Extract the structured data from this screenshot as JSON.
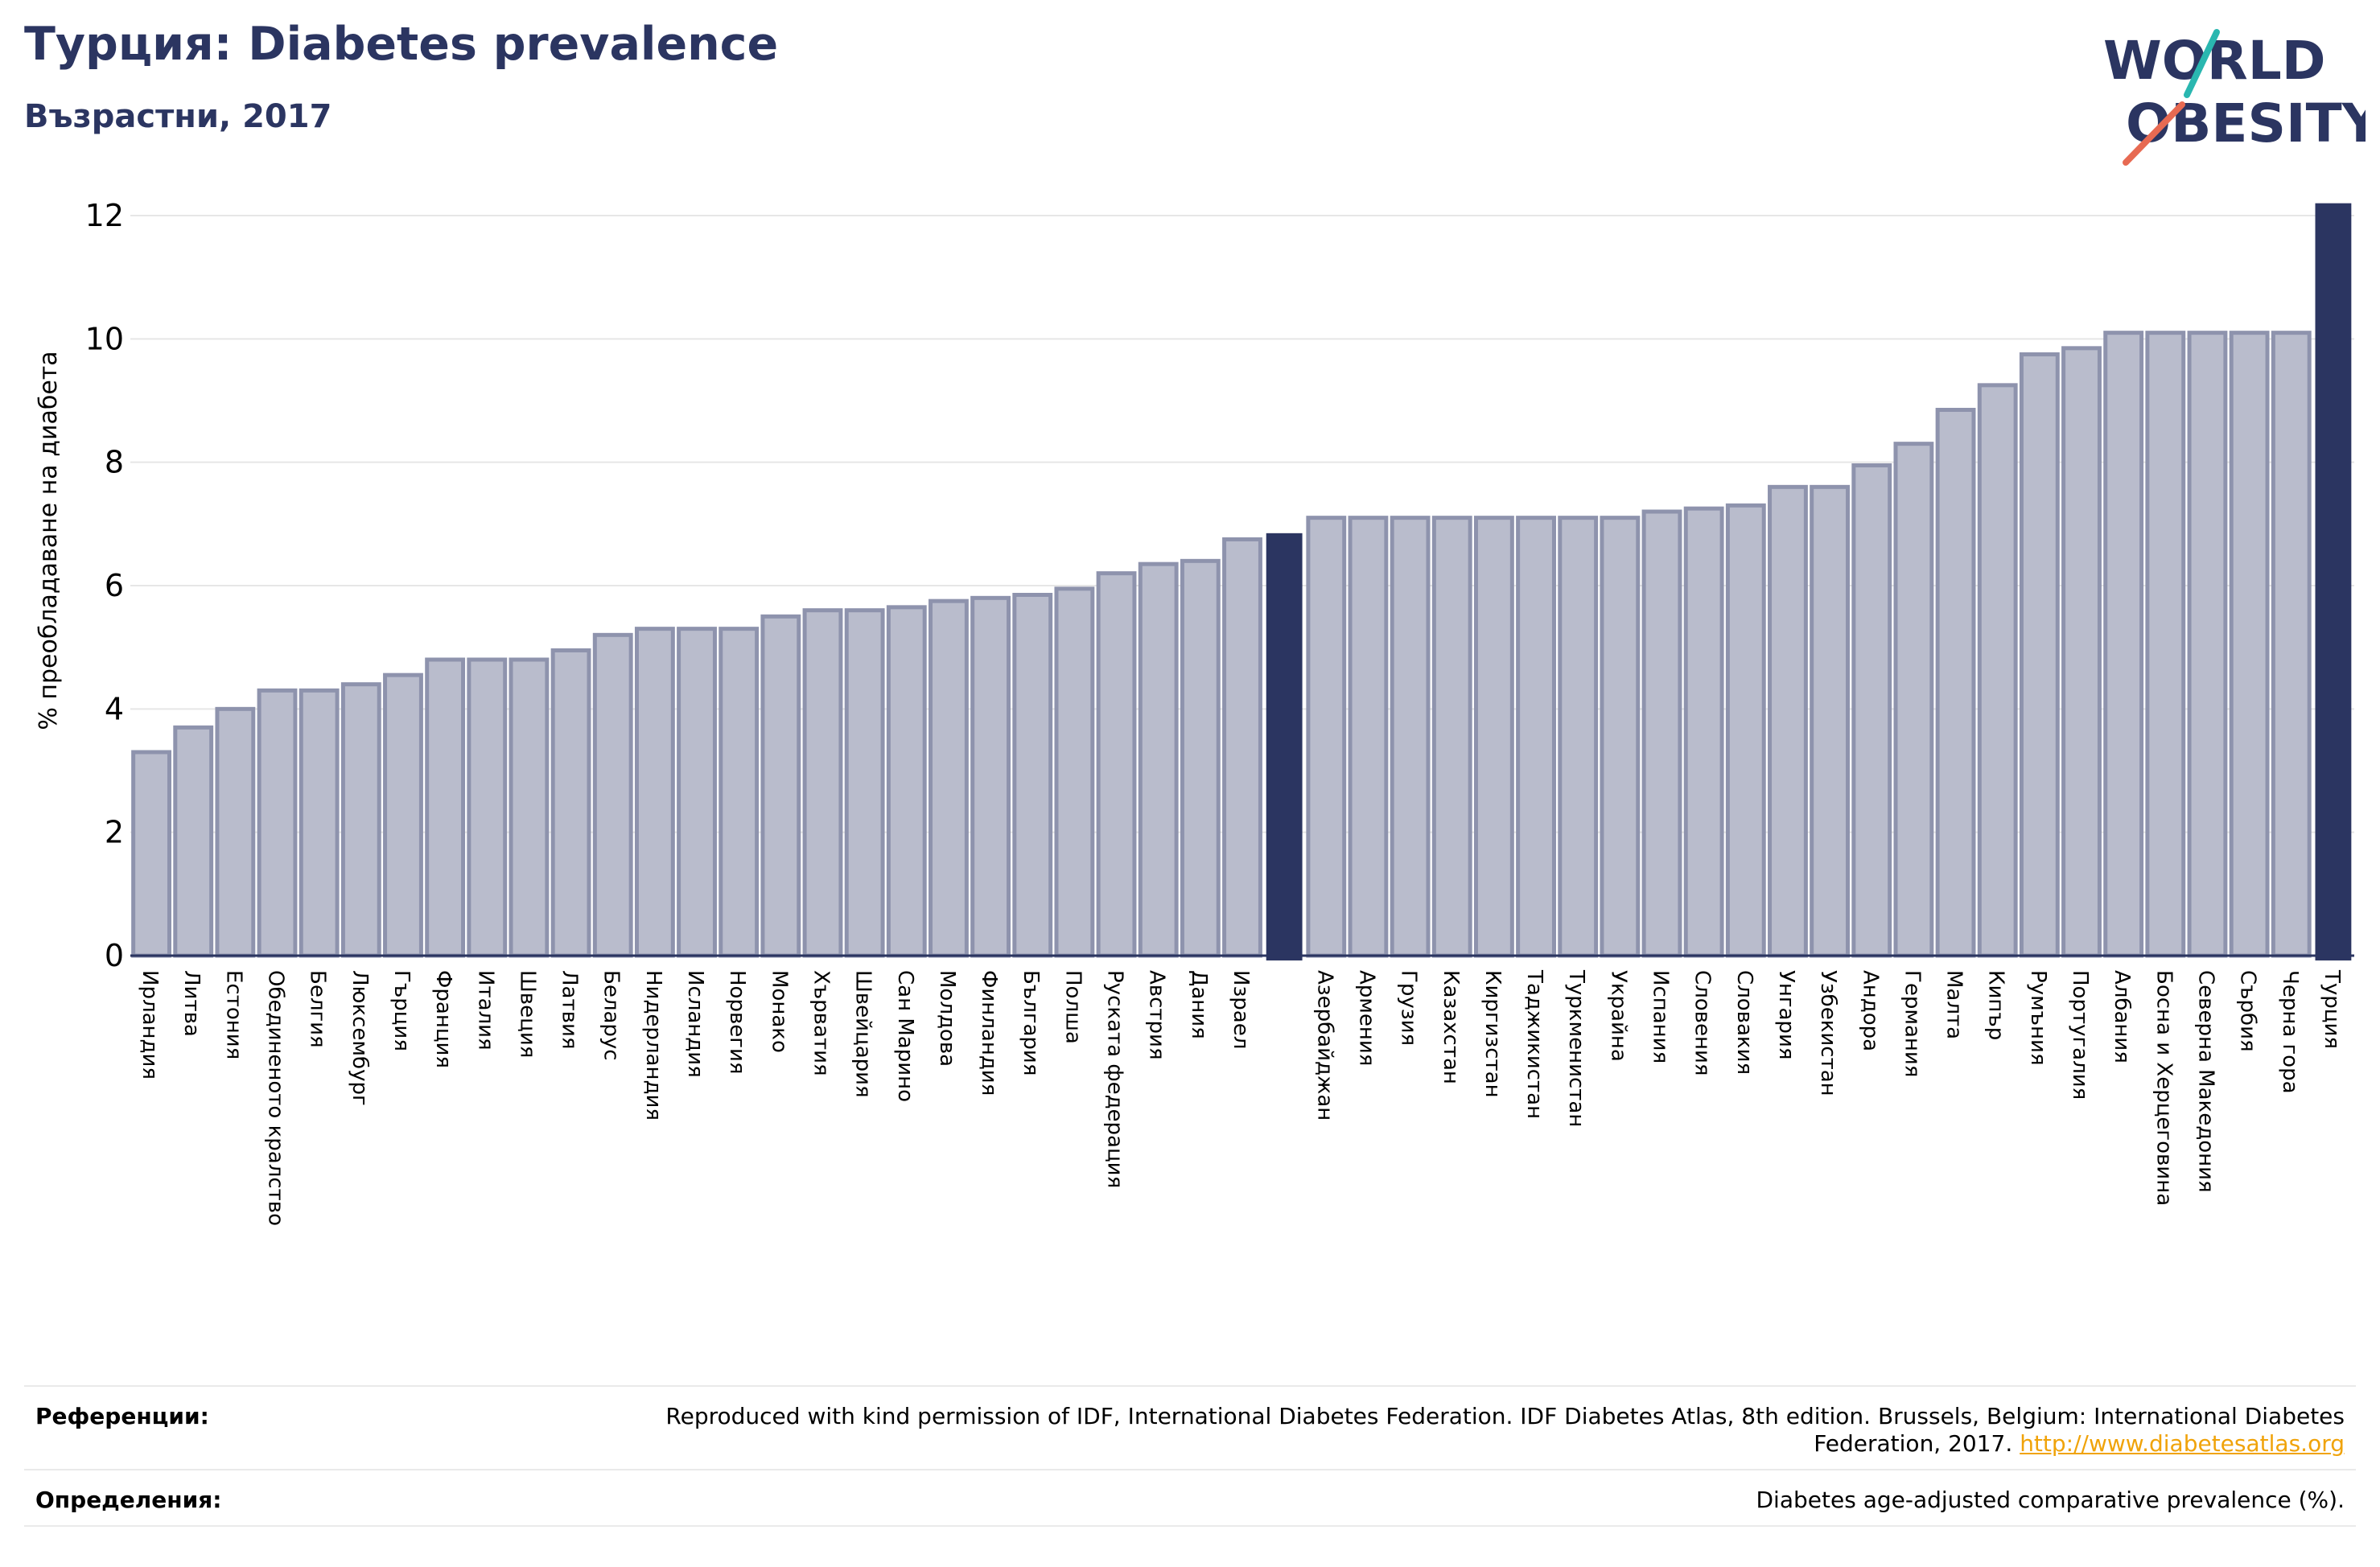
{
  "header": {
    "title": "Турция: Diabetes prevalence",
    "subtitle": "Възрастни, 2017"
  },
  "logo": {
    "line1": "WORLD",
    "line2": "OBESITY"
  },
  "chart_data": {
    "type": "bar",
    "ylabel": "% преобладаване на диабета",
    "ylim": [
      0,
      12
    ],
    "yticks": [
      0,
      2,
      4,
      6,
      8,
      10,
      12
    ],
    "grid": true,
    "colors": {
      "bar": "#b9bccc",
      "bar_edge": "#8e93ad",
      "highlight": "#2b3561"
    },
    "categories": [
      "Ирландия",
      "Литва",
      "Естония",
      "Обединеното кралство",
      "Белгия",
      "Люксембург",
      "Гърция",
      "Франция",
      "Италия",
      "Швеция",
      "Латвия",
      "Беларус",
      "Нидерландия",
      "Исландия",
      "Норвегия",
      "Монако",
      "Хърватия",
      "Швейцария",
      "Сан Марино",
      "Молдова",
      "Финландия",
      "България",
      "Полша",
      "Руската федерация",
      "Австрия",
      "Дания",
      "Израел",
      "",
      "Азербайджан",
      "Армения",
      "Грузия",
      "Казахстан",
      "Киргизстан",
      "Таджикистан",
      "Туркменистан",
      "Украйна",
      "Испания",
      "Словения",
      "Словакия",
      "Унгария",
      "Узбекистан",
      "Андора",
      "Германия",
      "Малта",
      "Кипър",
      "Румъния",
      "Португалия",
      "Албания",
      "Босна и Херцеговина",
      "Северна Македония",
      "Сърбия",
      "Черна гора",
      "Турция"
    ],
    "values": [
      3.3,
      3.7,
      4.0,
      4.3,
      4.3,
      4.4,
      4.55,
      4.8,
      4.8,
      4.8,
      4.95,
      5.2,
      5.3,
      5.3,
      5.3,
      5.5,
      5.6,
      5.6,
      5.65,
      5.75,
      5.8,
      5.85,
      5.95,
      6.2,
      6.35,
      6.4,
      6.75,
      6.85,
      7.1,
      7.1,
      7.1,
      7.1,
      7.1,
      7.1,
      7.1,
      7.1,
      7.2,
      7.25,
      7.3,
      7.6,
      7.6,
      7.95,
      8.3,
      8.85,
      9.25,
      9.75,
      9.85,
      10.1,
      10.1,
      10.1,
      10.1,
      10.1,
      12.2
    ],
    "highlight_indices": [
      27,
      52
    ]
  },
  "footer": {
    "references_label": "Референции:",
    "references_text": "Reproduced with kind permission of IDF, International Diabetes Federation. IDF Diabetes Atlas, 8th edition. Brussels, Belgium: International Diabetes Federation, 2017.",
    "references_link": "http://www.diabetesatlas.org",
    "definitions_label": "Определения:",
    "definitions_text": "Diabetes age-adjusted comparative prevalence (%)."
  }
}
